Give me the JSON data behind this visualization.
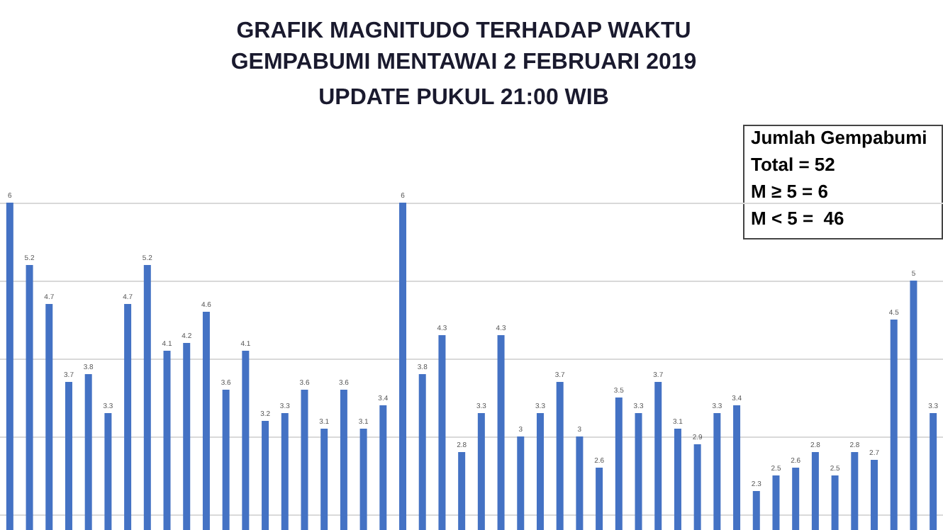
{
  "chart_data": {
    "type": "bar",
    "title": "GRAFIK MAGNITUDO TERHADAP WAKTU\nGEMPABUMI MENTAWAI 2 FEBRUARI 2019",
    "subtitle": "UPDATE PUKUL 21:00 WIB",
    "annotations": [
      "Jumlah Gempabumi",
      "Total = 52",
      "M ≥ 5 = 6",
      "M < 5 =  46"
    ],
    "categories": [
      null,
      null,
      null,
      null,
      null,
      null,
      null,
      null,
      null,
      null,
      null,
      null,
      null,
      null,
      null,
      null,
      null,
      null,
      null,
      null,
      null,
      null,
      null,
      null,
      null,
      null,
      null,
      null,
      null,
      null,
      null,
      null,
      null,
      null,
      null,
      null,
      null,
      null,
      null,
      null,
      null,
      null,
      null,
      null,
      null,
      null,
      null,
      null
    ],
    "values": [
      6,
      5.2,
      4.7,
      3.7,
      3.8,
      3.3,
      4.7,
      5.2,
      4.1,
      4.2,
      4.6,
      3.6,
      4.1,
      3.2,
      3.3,
      3.6,
      3.1,
      3.6,
      3.1,
      3.4,
      6,
      3.8,
      4.3,
      2.8,
      3.3,
      4.3,
      3,
      3.3,
      3.7,
      3,
      2.6,
      3.5,
      3.3,
      3.7,
      3.1,
      2.9,
      3.3,
      3.4,
      2.3,
      2.5,
      2.6,
      2.8,
      2.5,
      2.8,
      2.7,
      4.5,
      5,
      3.3
    ],
    "color": "#4472c4",
    "data_labels": true,
    "grid": "y",
    "ylim": [
      1.8,
      7
    ],
    "yticks": [
      {
        "value": 2,
        "label": null
      },
      {
        "value": 3,
        "label": null
      },
      {
        "value": 4,
        "label": null
      },
      {
        "value": 5,
        "label": null
      },
      {
        "value": 6,
        "label": null
      }
    ],
    "tick_labels": false
  }
}
